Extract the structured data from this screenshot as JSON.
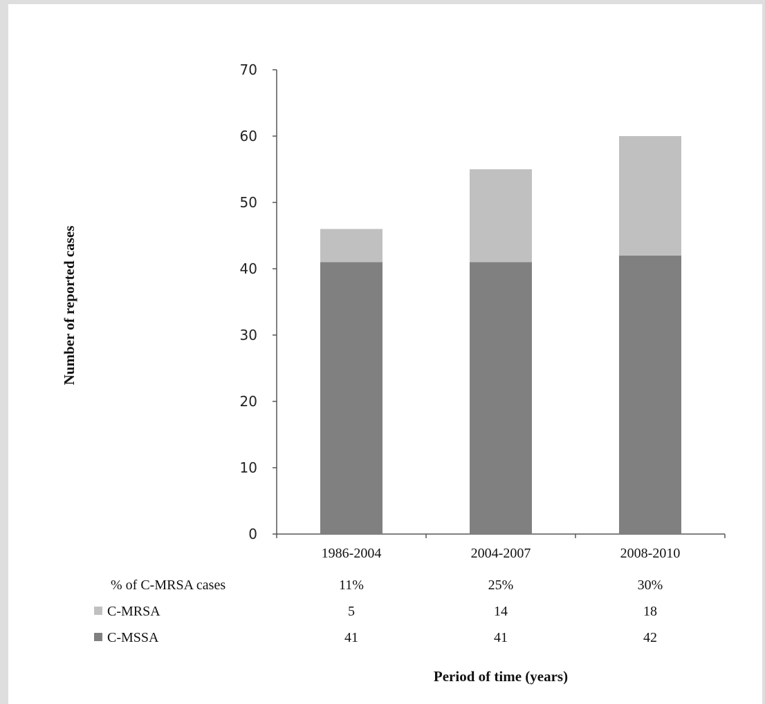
{
  "chart_data": {
    "type": "bar",
    "stacked": true,
    "categories": [
      "1986-2004",
      "2004-2007",
      "2008-2010"
    ],
    "series": [
      {
        "name": "C-MSSA",
        "values": [
          41,
          41,
          42
        ],
        "color": "#808080"
      },
      {
        "name": "C-MRSA",
        "values": [
          5,
          14,
          18
        ],
        "color": "#c0c0c0"
      }
    ],
    "ylim": [
      0,
      70
    ],
    "yticks": [
      0,
      10,
      20,
      30,
      40,
      50,
      60,
      70
    ],
    "ylabel": "Number of reported cases",
    "xlabel": "Period of time (years)",
    "grid": false,
    "data_table": {
      "rows": [
        {
          "label": "% of C-MRSA cases",
          "values": [
            "11%",
            "25%",
            "30%"
          ],
          "swatch": null
        },
        {
          "label": "C-MRSA",
          "values": [
            "5",
            "14",
            "18"
          ],
          "swatch": "#c0c0c0"
        },
        {
          "label": "C-MSSA",
          "values": [
            "41",
            "41",
            "42"
          ],
          "swatch": "#808080"
        }
      ]
    }
  }
}
